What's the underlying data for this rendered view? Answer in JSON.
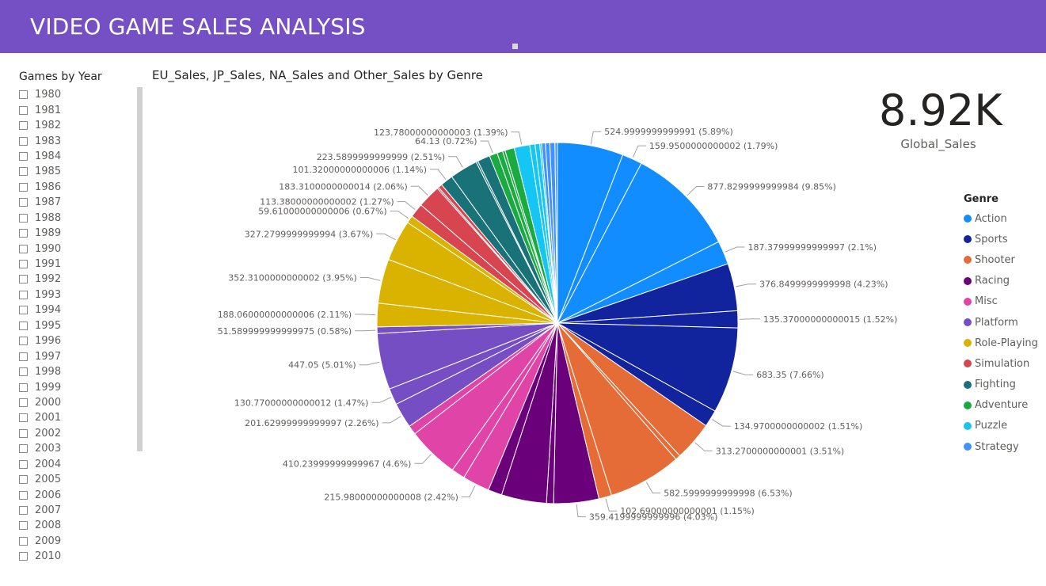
{
  "header": {
    "title": "VIDEO GAME SALES ANALYSIS"
  },
  "slicer": {
    "title": "Games by Year",
    "years": [
      "1980",
      "1981",
      "1982",
      "1983",
      "1984",
      "1985",
      "1986",
      "1987",
      "1988",
      "1989",
      "1990",
      "1991",
      "1992",
      "1993",
      "1994",
      "1995",
      "1996",
      "1997",
      "1998",
      "1999",
      "2000",
      "2001",
      "2002",
      "2003",
      "2004",
      "2005",
      "2006",
      "2007",
      "2008",
      "2009",
      "2010"
    ]
  },
  "kpi": {
    "value": "8.92K",
    "label": "Global_Sales"
  },
  "legend": {
    "title": "Genre",
    "items": [
      {
        "name": "Action",
        "color": "#118dff"
      },
      {
        "name": "Sports",
        "color": "#12239e"
      },
      {
        "name": "Shooter",
        "color": "#e66c37"
      },
      {
        "name": "Racing",
        "color": "#6b007b"
      },
      {
        "name": "Misc",
        "color": "#e044a7"
      },
      {
        "name": "Platform",
        "color": "#744ec2"
      },
      {
        "name": "Role-Playing",
        "color": "#d9b300"
      },
      {
        "name": "Simulation",
        "color": "#d64550"
      },
      {
        "name": "Fighting",
        "color": "#197278"
      },
      {
        "name": "Adventure",
        "color": "#1aab40"
      },
      {
        "name": "Puzzle",
        "color": "#15c6f4"
      },
      {
        "name": "Strategy",
        "color": "#4092ff"
      }
    ]
  },
  "chart_data": {
    "type": "pie",
    "title": "EU_Sales, JP_Sales, NA_Sales and Other_Sales by Genre",
    "slices": [
      {
        "genre": "Action",
        "value": 524.9999999999991,
        "label": "524.9999999999991 (5.89%)"
      },
      {
        "genre": "Action",
        "value": 159.9500000000002,
        "label": "159.9500000000002 (1.79%)"
      },
      {
        "genre": "Action",
        "value": 877.8299999999984,
        "label": "877.8299999999984 (9.85%)"
      },
      {
        "genre": "Action",
        "value": 187.37999999999997,
        "label": "187.37999999999997 (2.1%)"
      },
      {
        "genre": "Sports",
        "value": 376.8499999999998,
        "label": "376.8499999999998 (4.23%)"
      },
      {
        "genre": "Sports",
        "value": 135.37000000000015,
        "label": "135.37000000000015 (1.52%)"
      },
      {
        "genre": "Sports",
        "value": 683.35,
        "label": "683.35 (7.66%)"
      },
      {
        "genre": "Sports",
        "value": 134.9700000000002,
        "label": "134.9700000000002 (1.51%)"
      },
      {
        "genre": "Shooter",
        "value": 313.2700000000001,
        "label": "313.2700000000001 (3.51%)"
      },
      {
        "genre": "Shooter",
        "value": 40.7,
        "label": ""
      },
      {
        "genre": "Shooter",
        "value": 582.5999999999998,
        "label": "582.5999999999998 (6.53%)"
      },
      {
        "genre": "Shooter",
        "value": 102.69000000000001,
        "label": "102.69000000000001 (1.15%)"
      },
      {
        "genre": "Racing",
        "value": 359.4199999999996,
        "label": "359.4199999999996 (4.03%)"
      },
      {
        "genre": "Racing",
        "value": 56.2,
        "label": ""
      },
      {
        "genre": "Racing",
        "value": 359.0,
        "label": ""
      },
      {
        "genre": "Racing",
        "value": 110.0,
        "label": ""
      },
      {
        "genre": "Misc",
        "value": 215.98000000000008,
        "label": "215.98000000000008 (2.42%)"
      },
      {
        "genre": "Misc",
        "value": 108.0,
        "label": ""
      },
      {
        "genre": "Misc",
        "value": 410.23999999999967,
        "label": "410.23999999999967 (4.6%)"
      },
      {
        "genre": "Misc",
        "value": 73.0,
        "label": ""
      },
      {
        "genre": "Platform",
        "value": 201.62999999999997,
        "label": "201.62999999999997 (2.26%)"
      },
      {
        "genre": "Platform",
        "value": 130.77000000000012,
        "label": "130.77000000000012 (1.47%)"
      },
      {
        "genre": "Platform",
        "value": 447.05,
        "label": "447.05 (5.01%)"
      },
      {
        "genre": "Platform",
        "value": 51.589999999999975,
        "label": "51.589999999999975 (0.58%)"
      },
      {
        "genre": "Role-Playing",
        "value": 188.06000000000006,
        "label": "188.06000000000006 (2.11%)"
      },
      {
        "genre": "Role-Playing",
        "value": 352.3100000000002,
        "label": "352.3100000000002 (3.95%)"
      },
      {
        "genre": "Role-Playing",
        "value": 327.2799999999994,
        "label": "327.2799999999994 (3.67%)"
      },
      {
        "genre": "Role-Playing",
        "value": 59.61000000000006,
        "label": "59.61000000000006 (0.67%)"
      },
      {
        "genre": "Simulation",
        "value": 113.38000000000002,
        "label": "113.38000000000002 (1.27%)"
      },
      {
        "genre": "Simulation",
        "value": 183.3100000000014,
        "label": "183.3100000000014 (2.06%)"
      },
      {
        "genre": "Simulation",
        "value": 12.0,
        "label": ""
      },
      {
        "genre": "Simulation",
        "value": 32.0,
        "label": ""
      },
      {
        "genre": "Fighting",
        "value": 101.32000000000006,
        "label": "101.32000000000006 (1.14%)"
      },
      {
        "genre": "Fighting",
        "value": 223.5899999999999,
        "label": "223.5899999999999 (2.51%)"
      },
      {
        "genre": "Fighting",
        "value": 15.0,
        "label": ""
      },
      {
        "genre": "Fighting",
        "value": 100.0,
        "label": ""
      },
      {
        "genre": "Adventure",
        "value": 64.13,
        "label": "64.13 (0.72%)"
      },
      {
        "genre": "Adventure",
        "value": 45.0,
        "label": ""
      },
      {
        "genre": "Adventure",
        "value": 20.0,
        "label": ""
      },
      {
        "genre": "Adventure",
        "value": 75.0,
        "label": ""
      },
      {
        "genre": "Puzzle",
        "value": 123.78000000000003,
        "label": "123.78000000000003 (1.39%)"
      },
      {
        "genre": "Puzzle",
        "value": 42.0,
        "label": ""
      },
      {
        "genre": "Puzzle",
        "value": 37.0,
        "label": ""
      },
      {
        "genre": "Puzzle",
        "value": 15.0,
        "label": ""
      },
      {
        "genre": "Strategy",
        "value": 30.0,
        "label": ""
      },
      {
        "genre": "Strategy",
        "value": 35.0,
        "label": ""
      },
      {
        "genre": "Strategy",
        "value": 40.0,
        "label": ""
      },
      {
        "genre": "Strategy",
        "value": 20.0,
        "label": ""
      }
    ]
  }
}
